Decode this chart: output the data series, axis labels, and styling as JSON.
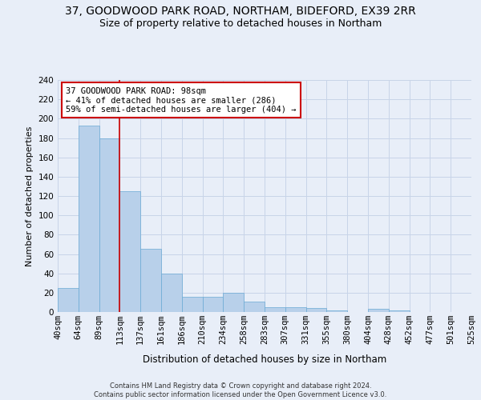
{
  "title": "37, GOODWOOD PARK ROAD, NORTHAM, BIDEFORD, EX39 2RR",
  "subtitle": "Size of property relative to detached houses in Northam",
  "xlabel": "Distribution of detached houses by size in Northam",
  "ylabel": "Number of detached properties",
  "bar_values": [
    25,
    193,
    180,
    125,
    65,
    40,
    16,
    16,
    20,
    11,
    5,
    5,
    4,
    2,
    0,
    3,
    2,
    0,
    0,
    0
  ],
  "bar_labels": [
    "40sqm",
    "64sqm",
    "89sqm",
    "113sqm",
    "137sqm",
    "161sqm",
    "186sqm",
    "210sqm",
    "234sqm",
    "258sqm",
    "283sqm",
    "307sqm",
    "331sqm",
    "355sqm",
    "380sqm",
    "404sqm",
    "428sqm",
    "452sqm",
    "477sqm",
    "501sqm",
    "525sqm"
  ],
  "ylim": [
    0,
    240
  ],
  "yticks": [
    0,
    20,
    40,
    60,
    80,
    100,
    120,
    140,
    160,
    180,
    200,
    220,
    240
  ],
  "bar_color": "#b8d0ea",
  "bar_edge_color": "#6aaad4",
  "grid_color": "#c8d4e8",
  "annotation_text_line1": "37 GOODWOOD PARK ROAD: 98sqm",
  "annotation_text_line2": "← 41% of detached houses are smaller (286)",
  "annotation_text_line3": "59% of semi-detached houses are larger (404) →",
  "annotation_box_color": "#ffffff",
  "annotation_box_edge": "#cc0000",
  "red_line_color": "#cc0000",
  "footer_line1": "Contains HM Land Registry data © Crown copyright and database right 2024.",
  "footer_line2": "Contains public sector information licensed under the Open Government Licence v3.0.",
  "background_color": "#e8eef8",
  "title_fontsize": 10,
  "subtitle_fontsize": 9,
  "tick_fontsize": 7.5,
  "ylabel_fontsize": 8,
  "xlabel_fontsize": 8.5
}
